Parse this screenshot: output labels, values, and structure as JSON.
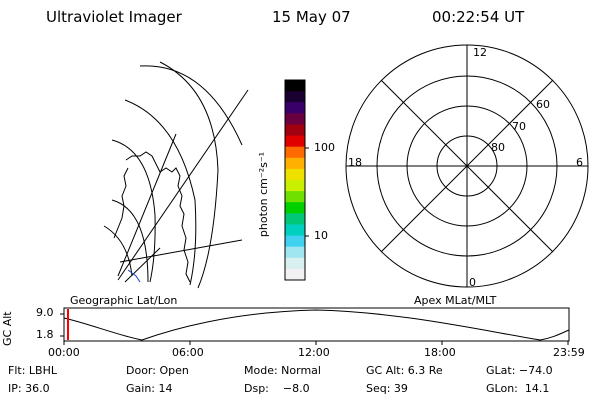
{
  "header": {
    "instrument": "Ultraviolet Imager",
    "date": "15 May 07",
    "time": "00:22:54 UT"
  },
  "colorbar": {
    "unit_label": "photon cm⁻²s⁻¹",
    "ticks": [
      "100",
      "10"
    ],
    "colors": [
      "#000000",
      "#1a0030",
      "#3a006a",
      "#6a0040",
      "#a00010",
      "#e00000",
      "#ff6a00",
      "#ffb000",
      "#f0e000",
      "#c8f000",
      "#70e000",
      "#00d000",
      "#00c878",
      "#00d0c0",
      "#40d0f0",
      "#a0e6f0",
      "#d8f0f0",
      "#f2f2f2"
    ]
  },
  "geo_panel": {
    "label": "Geographic Lat/Lon"
  },
  "polar_panel": {
    "label": "Apex MLat/MLT",
    "mlt_labels": {
      "top": "12",
      "bottom": "0",
      "left": "18",
      "right": "6"
    },
    "lat_labels": [
      "60",
      "70",
      "80"
    ]
  },
  "orbit_plot": {
    "ylabel": "GC Alt",
    "y_ticks": [
      "9.0",
      "1.8"
    ],
    "x_ticks": [
      "00:00",
      "06:00",
      "12:00",
      "18:00",
      "23:59"
    ],
    "marker_color": "#ff0000"
  },
  "info": {
    "row1": {
      "flt": "Flt: LBHL",
      "door": "Door: Open",
      "mode": "Mode: Normal",
      "gc_alt": "GC Alt: 6.3 Re",
      "glat": "GLat: −74.0"
    },
    "row2": {
      "ip": "IP: 36.0",
      "gain": "Gain: 14",
      "dsp": "Dsp:    −8.0",
      "seq": "Seq: 39",
      "glon": "GLon:  14.1"
    }
  }
}
